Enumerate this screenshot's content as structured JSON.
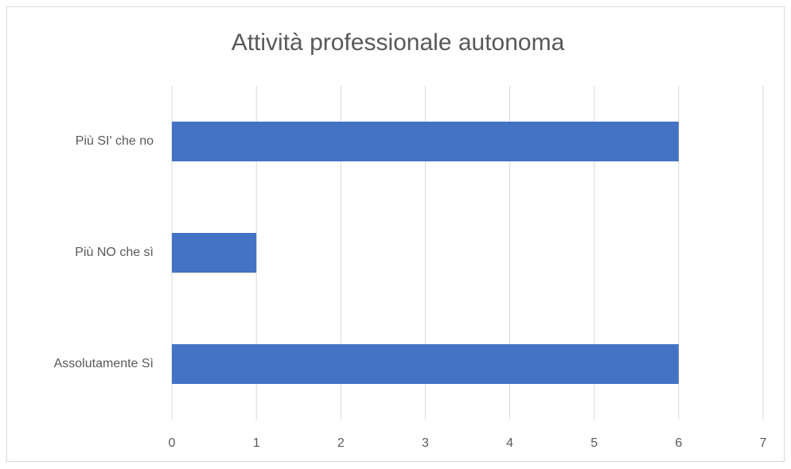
{
  "chart_data": {
    "type": "bar",
    "orientation": "horizontal",
    "title": "Attività professionale autonoma",
    "categories": [
      "Assolutamente Sì",
      "Più NO che sì",
      "Più SI' che no"
    ],
    "values": [
      6,
      1,
      6
    ],
    "color": "#4472c4",
    "xlim": [
      0,
      7
    ],
    "xticks": [
      0,
      1,
      2,
      3,
      4,
      5,
      6,
      7
    ],
    "grid": true
  }
}
